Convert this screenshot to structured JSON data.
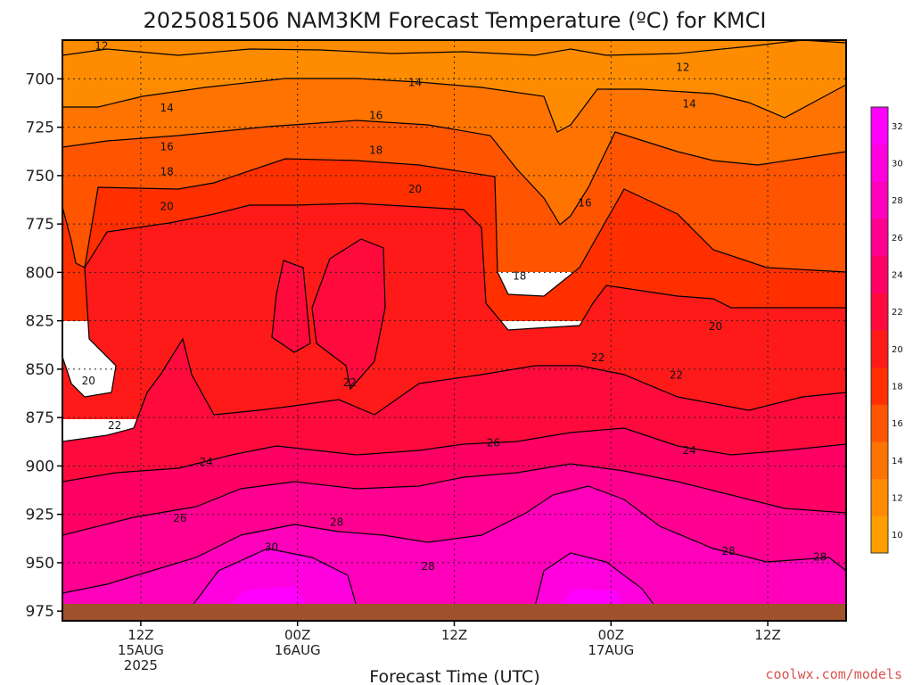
{
  "credit": "coolwx.com/models",
  "chart_data": {
    "type": "heatmap",
    "title": "2025081506 NAM3KM Forecast Temperature (ºC) for KMCI",
    "xlabel": "Forecast Time (UTC)",
    "ylabel": "",
    "yticks": [
      {
        "value": 700,
        "label": "700"
      },
      {
        "value": 725,
        "label": "725"
      },
      {
        "value": 750,
        "label": "750"
      },
      {
        "value": 775,
        "label": "775"
      },
      {
        "value": 800,
        "label": "800"
      },
      {
        "value": 825,
        "label": "825"
      },
      {
        "value": 850,
        "label": "850"
      },
      {
        "value": 875,
        "label": "875"
      },
      {
        "value": 900,
        "label": "900"
      },
      {
        "value": 925,
        "label": "925"
      },
      {
        "value": 950,
        "label": "950"
      },
      {
        "value": 975,
        "label": "975"
      }
    ],
    "xticks": [
      {
        "hour": 6,
        "lines": [
          "12Z",
          "15AUG",
          "2025"
        ]
      },
      {
        "hour": 18,
        "lines": [
          "00Z",
          "16AUG"
        ]
      },
      {
        "hour": 30,
        "lines": [
          "12Z"
        ]
      },
      {
        "hour": 42,
        "lines": [
          "00Z",
          "17AUG"
        ]
      },
      {
        "hour": 54,
        "lines": [
          "12Z"
        ]
      }
    ],
    "xlim": [
      0,
      60
    ],
    "ylim": [
      680,
      980
    ],
    "y_axis_inverted": true,
    "grid": "dotted",
    "ground_level_hpa": 976,
    "ground_color": "#a0522d",
    "colorbar": {
      "levels": [
        10,
        12,
        14,
        16,
        18,
        20,
        22,
        24,
        26,
        28,
        30,
        32
      ],
      "colors": [
        "#ff9e00",
        "#ff8c00",
        "#ff7300",
        "#ff5500",
        "#ff2f00",
        "#ff1a1a",
        "#ff0a3c",
        "#ff0064",
        "#ff0090",
        "#ff00bb",
        "#ff00de",
        "#ff00ff"
      ],
      "placement": "right"
    },
    "contour_levels": [
      12,
      14,
      16,
      18,
      20,
      22,
      24,
      26,
      28,
      30
    ],
    "contour_labels": [
      {
        "text": "12",
        "hour": 3,
        "hpa": 683
      },
      {
        "text": "12",
        "hour": 47.5,
        "hpa": 694
      },
      {
        "text": "14",
        "hour": 27,
        "hpa": 702
      },
      {
        "text": "14",
        "hour": 8,
        "hpa": 715
      },
      {
        "text": "14",
        "hour": 48,
        "hpa": 713
      },
      {
        "text": "16",
        "hour": 24,
        "hpa": 719
      },
      {
        "text": "16",
        "hour": 8,
        "hpa": 735
      },
      {
        "text": "16",
        "hour": 40,
        "hpa": 764
      },
      {
        "text": "18",
        "hour": 24,
        "hpa": 737
      },
      {
        "text": "18",
        "hour": 8,
        "hpa": 748
      },
      {
        "text": "18",
        "hour": 35,
        "hpa": 802
      },
      {
        "text": "20",
        "hour": 27,
        "hpa": 757
      },
      {
        "text": "20",
        "hour": 8,
        "hpa": 766
      },
      {
        "text": "20",
        "hour": 2,
        "hpa": 856
      },
      {
        "text": "20",
        "hour": 50,
        "hpa": 828
      },
      {
        "text": "22",
        "hour": 22,
        "hpa": 857
      },
      {
        "text": "22",
        "hour": 41,
        "hpa": 844
      },
      {
        "text": "22",
        "hour": 47,
        "hpa": 853
      },
      {
        "text": "22",
        "hour": 4,
        "hpa": 879
      },
      {
        "text": "24",
        "hour": 11,
        "hpa": 898
      },
      {
        "text": "24",
        "hour": 48,
        "hpa": 892
      },
      {
        "text": "26",
        "hour": 33,
        "hpa": 888
      },
      {
        "text": "26",
        "hour": 9,
        "hpa": 927
      },
      {
        "text": "28",
        "hour": 21,
        "hpa": 929
      },
      {
        "text": "28",
        "hour": 28,
        "hpa": 952
      },
      {
        "text": "28",
        "hour": 51,
        "hpa": 944
      },
      {
        "text": "28",
        "hour": 58,
        "hpa": 947
      },
      {
        "text": "30",
        "hour": 16,
        "hpa": 942
      }
    ]
  }
}
